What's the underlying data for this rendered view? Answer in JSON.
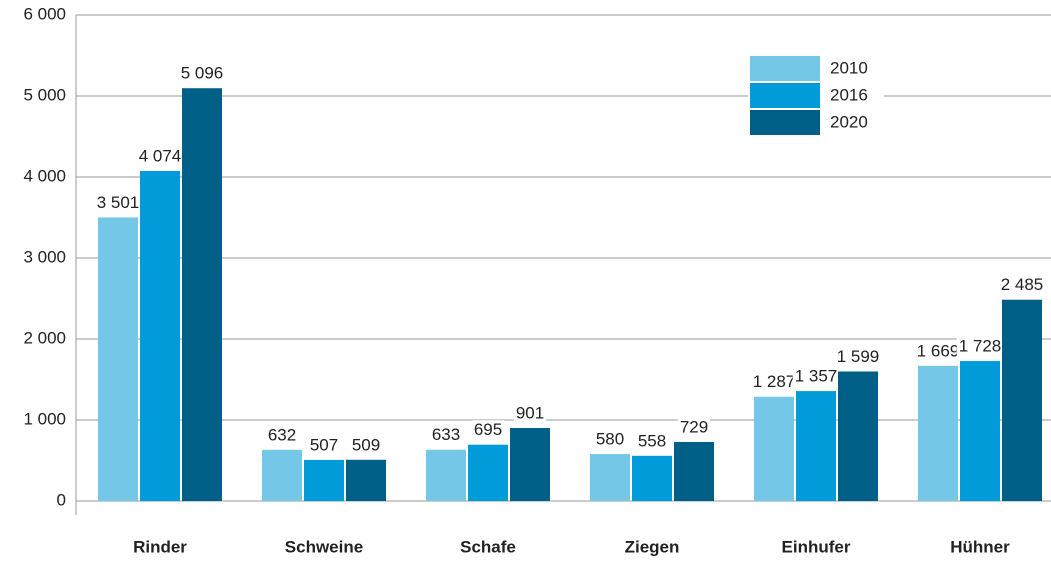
{
  "chart_data": {
    "type": "bar",
    "categories": [
      "Rinder",
      "Schweine",
      "Schafe",
      "Ziegen",
      "Einhufer",
      "Hühner"
    ],
    "series": [
      {
        "name": "2010",
        "color": "#74c7e7",
        "values": [
          3501,
          632,
          633,
          580,
          1287,
          1669
        ],
        "value_labels": [
          "3 501",
          "632",
          "633",
          "580",
          "1 287",
          "1 669"
        ]
      },
      {
        "name": "2016",
        "color": "#009bd8",
        "values": [
          4074,
          507,
          695,
          558,
          1357,
          1728
        ],
        "value_labels": [
          "4 074",
          "507",
          "695",
          "558",
          "1 357",
          "1 728"
        ]
      },
      {
        "name": "2020",
        "color": "#005f87",
        "values": [
          5096,
          509,
          901,
          729,
          1599,
          2485
        ],
        "value_labels": [
          "5 096",
          "509",
          "901",
          "729",
          "1 599",
          "2 485"
        ]
      }
    ],
    "ylim": [
      0,
      6000
    ],
    "yticks": [
      0,
      {
        "value": 1000,
        "label": "1 000"
      },
      {
        "value": 2000,
        "label": "2 000"
      },
      {
        "value": 3000,
        "label": "3 000"
      },
      {
        "value": 4000,
        "label": "4 000"
      },
      {
        "value": 5000,
        "label": "5 000"
      },
      {
        "value": 6000,
        "label": "6 000"
      }
    ],
    "grid": true,
    "legend": "upper right"
  }
}
